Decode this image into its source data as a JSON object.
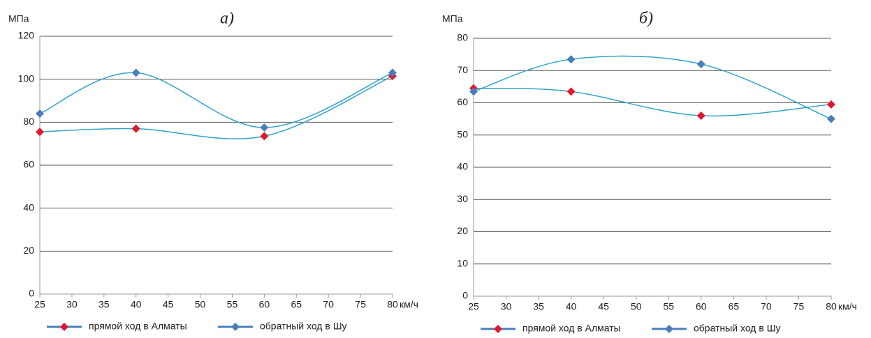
{
  "chart_data": [
    {
      "type": "line",
      "title": "а)",
      "y_label": "МПа",
      "x_label": "км/ч",
      "x": [
        25,
        40,
        60,
        80
      ],
      "xlim": [
        25,
        80
      ],
      "xticks": [
        25,
        30,
        35,
        40,
        45,
        50,
        55,
        60,
        65,
        70,
        75,
        80
      ],
      "ylim": [
        0,
        120
      ],
      "yticks": [
        0,
        20,
        40,
        60,
        80,
        100,
        120
      ],
      "grid": true,
      "smooth": true,
      "line_color": "#2fa3c9",
      "legend": "bottom",
      "series": [
        {
          "name": "прямой ход в Алматы",
          "color": "#e0182d",
          "values": [
            75.5,
            77,
            73.5,
            101.5
          ]
        },
        {
          "name": "обратный ход  в Шу",
          "color": "#4a7ebb",
          "values": [
            84,
            103,
            77.5,
            103
          ]
        }
      ]
    },
    {
      "type": "line",
      "title": "б)",
      "y_label": "МПа",
      "x_label": "км/ч",
      "x": [
        25,
        40,
        60,
        80
      ],
      "xlim": [
        25,
        80
      ],
      "xticks": [
        25,
        30,
        35,
        40,
        45,
        50,
        55,
        60,
        65,
        70,
        75,
        80
      ],
      "ylim": [
        0,
        80
      ],
      "yticks": [
        0,
        10,
        20,
        30,
        40,
        50,
        60,
        70,
        80
      ],
      "grid": true,
      "smooth": true,
      "line_color": "#2fa3c9",
      "legend": "bottom",
      "series": [
        {
          "name": "прямой ход в Алматы",
          "color": "#e0182d",
          "values": [
            64.5,
            63.5,
            56,
            59.5
          ]
        },
        {
          "name": "обратный ход  в Шу",
          "color": "#4a7ebb",
          "values": [
            63.5,
            73.5,
            72,
            55
          ]
        }
      ]
    }
  ]
}
